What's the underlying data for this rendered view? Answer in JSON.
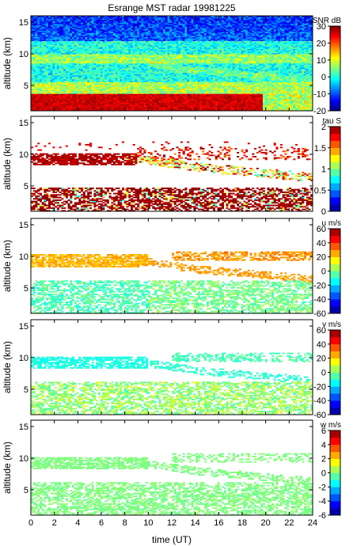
{
  "title": "Esrange MST radar 19981225",
  "xlabel": "time (UT)",
  "chart_data": {
    "type": "heatmap",
    "title": "Esrange MST radar 19981225",
    "xlabel": "time (UT)",
    "x_ticks": [
      0,
      2,
      4,
      6,
      8,
      10,
      12,
      14,
      16,
      18,
      20,
      22,
      24
    ],
    "xlim": [
      0,
      24
    ],
    "panels": [
      {
        "id": "snr",
        "ylabel": "altitude (km)",
        "ylim": [
          1,
          16
        ],
        "y_ticks": [
          5,
          10,
          15
        ],
        "colorbar_label": "SNR dB",
        "clim": [
          -20,
          30
        ],
        "colorbar_ticks": [
          -20,
          -10,
          0,
          10,
          20,
          30
        ],
        "description_layers": [
          {
            "alt_range": [
              1,
              4
            ],
            "value": 28
          },
          {
            "alt_range": [
              4,
              6
            ],
            "value": 8
          },
          {
            "alt_range": [
              6,
              12
            ],
            "value": 0
          },
          {
            "alt_range": [
              12,
              16
            ],
            "value": -12
          }
        ]
      },
      {
        "id": "tau",
        "ylabel": "altitude (km)",
        "ylim": [
          1,
          16
        ],
        "y_ticks": [
          5,
          10,
          15
        ],
        "colorbar_label": "tau S",
        "clim": [
          0,
          2
        ],
        "colorbar_ticks": [
          0,
          0.5,
          1,
          1.5,
          2
        ]
      },
      {
        "id": "u",
        "ylabel": "altitude (km)",
        "ylim": [
          1,
          16
        ],
        "y_ticks": [
          5,
          10,
          15
        ],
        "colorbar_label": "u m/s",
        "clim": [
          -60,
          60
        ],
        "colorbar_ticks": [
          -60,
          -40,
          -20,
          0,
          20,
          40,
          60
        ]
      },
      {
        "id": "v",
        "ylabel": "altitude (km)",
        "ylim": [
          1,
          16
        ],
        "y_ticks": [
          5,
          10,
          15
        ],
        "colorbar_label": "v m/s",
        "clim": [
          -60,
          60
        ],
        "colorbar_ticks": [
          -60,
          -40,
          -20,
          0,
          20,
          40,
          60
        ]
      },
      {
        "id": "w",
        "ylabel": "altitude (km)",
        "ylim": [
          1,
          16
        ],
        "y_ticks": [
          5,
          10,
          15
        ],
        "colorbar_label": "w m/s",
        "clim": [
          -6,
          6
        ],
        "colorbar_ticks": [
          -6,
          -4,
          -2,
          0,
          2,
          4,
          6
        ]
      }
    ]
  }
}
